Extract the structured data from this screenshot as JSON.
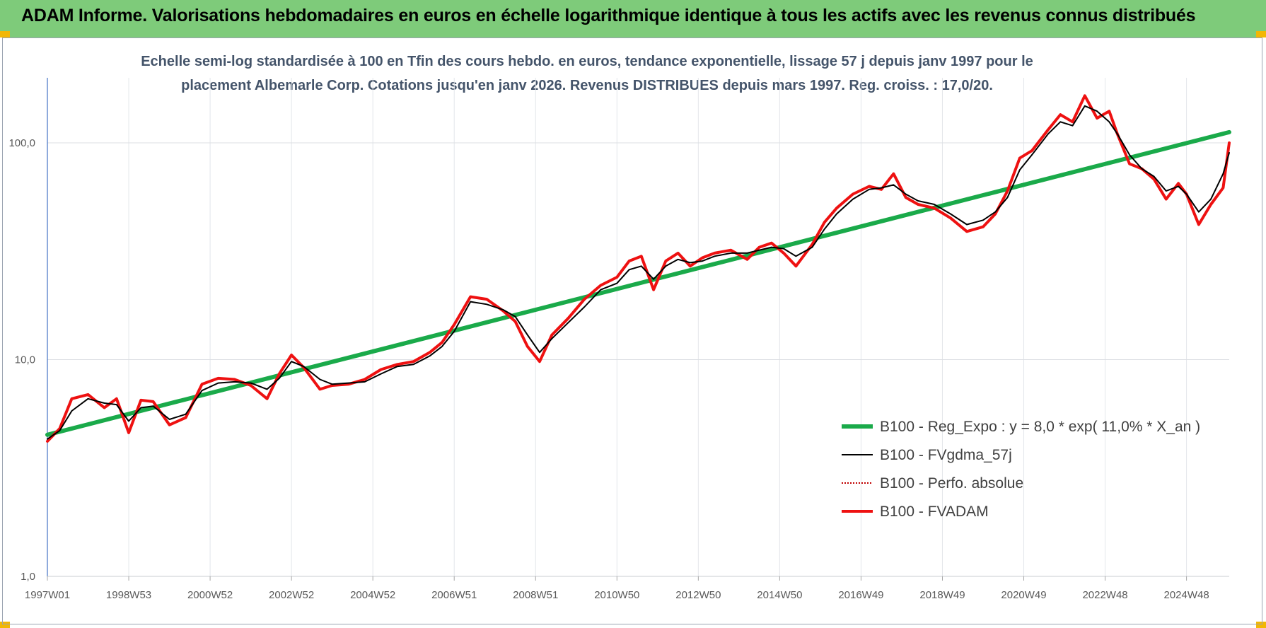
{
  "header": {
    "title": "ADAM Informe. Valorisations hebdomadaires en euros en échelle logarithmique identique à tous les actifs avec les revenus connus distribués"
  },
  "chart_data": {
    "type": "line",
    "subtitle_line1": "Echelle semi-log standardisée à 100 en Tfin des cours hebdo. en euros, tendance exponentielle, lissage 57 j depuis janv 1997 pour le",
    "subtitle_line2": "placement Albemarle Corp. Cotations jusqu'en janv 2026. Revenus DISTRIBUES depuis mars 1997. Reg. croiss. : 17,0/20.",
    "y_scale": "log",
    "ylim": [
      1,
      190
    ],
    "y_ticks": [
      {
        "value": 1,
        "label": "1,0"
      },
      {
        "value": 10,
        "label": "10,0"
      },
      {
        "value": 100,
        "label": "100,0"
      }
    ],
    "xlim": [
      1997.0,
      2026.05
    ],
    "x_ticks": [
      {
        "value": 1997.0,
        "label": "1997W01"
      },
      {
        "value": 1999.0,
        "label": "1998W53"
      },
      {
        "value": 2001.0,
        "label": "2000W52"
      },
      {
        "value": 2003.0,
        "label": "2002W52"
      },
      {
        "value": 2005.0,
        "label": "2004W52"
      },
      {
        "value": 2007.0,
        "label": "2006W51"
      },
      {
        "value": 2009.0,
        "label": "2008W51"
      },
      {
        "value": 2011.0,
        "label": "2010W50"
      },
      {
        "value": 2013.0,
        "label": "2012W50"
      },
      {
        "value": 2015.0,
        "label": "2014W50"
      },
      {
        "value": 2017.0,
        "label": "2016W49"
      },
      {
        "value": 2019.0,
        "label": "2018W49"
      },
      {
        "value": 2021.0,
        "label": "2020W49"
      },
      {
        "value": 2023.0,
        "label": "2022W48"
      },
      {
        "value": 2025.0,
        "label": "2024W48"
      }
    ],
    "grid": true,
    "legend_position": "bottom-right",
    "series": [
      {
        "name": "B100 - Reg_Expo : y = 8,0 * exp( 11,0% *  X_an )",
        "color": "#1aaa4a",
        "style": "solid-thick",
        "x": [
          1997.0,
          2026.05
        ],
        "values": [
          4.5,
          112
        ]
      },
      {
        "name": "B100 - FVgdma_57j",
        "color": "#000000",
        "style": "solid",
        "x": [
          1997.0,
          1997.3,
          1997.6,
          1998.0,
          1998.4,
          1998.7,
          1999.0,
          1999.3,
          1999.6,
          2000.0,
          2000.4,
          2000.8,
          2001.2,
          2001.6,
          2002.0,
          2002.4,
          2002.7,
          2003.0,
          2003.3,
          2003.7,
          2004.0,
          2004.4,
          2004.8,
          2005.2,
          2005.6,
          2006.0,
          2006.4,
          2006.7,
          2007.0,
          2007.4,
          2007.8,
          2008.2,
          2008.5,
          2008.8,
          2009.1,
          2009.4,
          2009.8,
          2010.2,
          2010.6,
          2011.0,
          2011.3,
          2011.6,
          2011.9,
          2012.2,
          2012.5,
          2012.8,
          2013.1,
          2013.4,
          2013.8,
          2014.2,
          2014.5,
          2014.8,
          2015.1,
          2015.4,
          2015.8,
          2016.1,
          2016.4,
          2016.8,
          2017.2,
          2017.5,
          2017.8,
          2018.1,
          2018.4,
          2018.8,
          2019.2,
          2019.6,
          2020.0,
          2020.3,
          2020.6,
          2020.9,
          2021.2,
          2021.6,
          2021.9,
          2022.2,
          2022.5,
          2022.8,
          2023.1,
          2023.3,
          2023.6,
          2023.9,
          2024.2,
          2024.5,
          2024.8,
          2025.0,
          2025.3,
          2025.6,
          2025.9,
          2026.05
        ],
        "values": [
          4.3,
          4.7,
          5.8,
          6.6,
          6.3,
          6.2,
          5.2,
          6.0,
          6.1,
          5.3,
          5.6,
          7.2,
          7.8,
          7.9,
          7.8,
          7.3,
          8.2,
          9.8,
          9.3,
          8.1,
          7.7,
          7.8,
          7.9,
          8.6,
          9.3,
          9.5,
          10.4,
          11.5,
          13.5,
          18.5,
          18.0,
          17.0,
          15.8,
          13.0,
          10.8,
          12.5,
          14.8,
          17.5,
          21.0,
          22.5,
          26.0,
          27.0,
          23.5,
          27.0,
          29.0,
          28.0,
          28.5,
          30.0,
          31.0,
          31.0,
          32.0,
          33.0,
          32.5,
          30.0,
          33.0,
          40.0,
          47.0,
          55.0,
          61.0,
          62.0,
          64.0,
          58.0,
          54.0,
          52.0,
          47.0,
          42.0,
          44.0,
          48.0,
          56.0,
          75.0,
          88.0,
          110.0,
          125.0,
          120.0,
          148.0,
          140.0,
          125.0,
          110.0,
          88.0,
          76.0,
          70.0,
          60.0,
          63.0,
          58.0,
          48.0,
          55.0,
          72.0,
          90.0
        ]
      },
      {
        "name": "B100 - Perfo. absolue",
        "color": "#c00000",
        "style": "dotted",
        "x": [],
        "values": []
      },
      {
        "name": "B100 - FVADAM",
        "color": "#ee1111",
        "style": "solid-thick",
        "x": [
          1997.0,
          1997.3,
          1997.6,
          1998.0,
          1998.4,
          1998.7,
          1999.0,
          1999.3,
          1999.6,
          2000.0,
          2000.4,
          2000.8,
          2001.2,
          2001.6,
          2002.0,
          2002.4,
          2002.7,
          2003.0,
          2003.3,
          2003.7,
          2004.0,
          2004.4,
          2004.8,
          2005.2,
          2005.6,
          2006.0,
          2006.4,
          2006.7,
          2007.0,
          2007.4,
          2007.8,
          2008.2,
          2008.5,
          2008.8,
          2009.1,
          2009.4,
          2009.8,
          2010.2,
          2010.6,
          2011.0,
          2011.3,
          2011.6,
          2011.9,
          2012.2,
          2012.5,
          2012.8,
          2013.1,
          2013.4,
          2013.8,
          2014.2,
          2014.5,
          2014.8,
          2015.1,
          2015.4,
          2015.8,
          2016.1,
          2016.4,
          2016.8,
          2017.2,
          2017.5,
          2017.8,
          2018.1,
          2018.4,
          2018.8,
          2019.2,
          2019.6,
          2020.0,
          2020.3,
          2020.6,
          2020.9,
          2021.2,
          2021.6,
          2021.9,
          2022.2,
          2022.5,
          2022.8,
          2023.1,
          2023.3,
          2023.6,
          2023.9,
          2024.2,
          2024.5,
          2024.8,
          2025.0,
          2025.3,
          2025.6,
          2025.9,
          2026.05
        ],
        "values": [
          4.2,
          4.8,
          6.6,
          6.9,
          6.0,
          6.6,
          4.6,
          6.5,
          6.4,
          5.0,
          5.4,
          7.7,
          8.2,
          8.1,
          7.6,
          6.6,
          8.6,
          10.5,
          9.2,
          7.3,
          7.6,
          7.7,
          8.1,
          9.0,
          9.5,
          9.8,
          10.8,
          12.0,
          14.5,
          19.5,
          19.0,
          16.8,
          15.0,
          11.5,
          9.8,
          13.0,
          15.5,
          19.0,
          22.0,
          24.0,
          28.5,
          30.0,
          21.0,
          28.5,
          31.0,
          27.0,
          29.5,
          31.0,
          32.0,
          29.0,
          33.0,
          34.5,
          31.0,
          27.0,
          34.0,
          43.0,
          50.0,
          58.0,
          63.0,
          61.0,
          72.0,
          56.0,
          52.0,
          50.0,
          45.0,
          39.0,
          41.0,
          47.0,
          60.0,
          85.0,
          92.0,
          115.0,
          135.0,
          125.0,
          165.0,
          130.0,
          140.0,
          110.0,
          80.0,
          76.0,
          68.0,
          55.0,
          65.0,
          58.0,
          42.0,
          52.0,
          62.0,
          100.0
        ]
      }
    ]
  }
}
